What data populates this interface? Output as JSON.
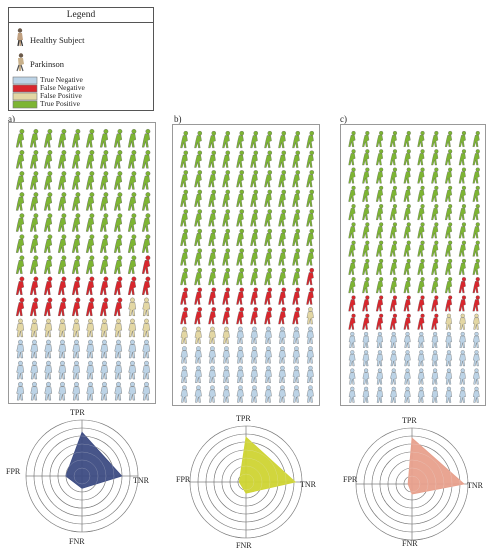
{
  "legend": {
    "title": "Legend",
    "figures": [
      {
        "label": "Healthy Subject",
        "icon": "healthy-subject-icon"
      },
      {
        "label": "Parkinson",
        "icon": "parkinson-subject-icon"
      }
    ],
    "classes": [
      {
        "label": "True Negative",
        "color": "#bcd3e6"
      },
      {
        "label": "False Negative",
        "color": "#d9262d"
      },
      {
        "label": "False Positive",
        "color": "#e3d7a4"
      },
      {
        "label": "True Positive",
        "color": "#7db533"
      }
    ]
  },
  "panels": [
    {
      "label": "a)",
      "counts": {
        "tp": 69,
        "fn": 19,
        "fp": 12,
        "tn": 30
      },
      "radar": {
        "color": "#3d4c83",
        "axes": [
          "TPR",
          "TNR",
          "FNR",
          "FPR"
        ],
        "values": {
          "TPR": 0.78,
          "TNR": 0.71,
          "FNR": 0.22,
          "FPR": 0.29
        }
      }
    },
    {
      "label": "b)",
      "counts": {
        "tp": 79,
        "fn": 20,
        "fp": 5,
        "tn": 36
      },
      "radar": {
        "color": "#cfd433",
        "axes": [
          "TPR",
          "TNR",
          "FNR",
          "FPR"
        ],
        "values": {
          "TPR": 0.8,
          "TNR": 0.88,
          "FNR": 0.2,
          "FPR": 0.12
        }
      }
    },
    {
      "label": "c)",
      "counts": {
        "tp": 88,
        "fn": 19,
        "fp": 3,
        "tn": 40
      },
      "radar": {
        "color": "#e8a08c",
        "axes": [
          "TPR",
          "TNR",
          "FNR",
          "FPR"
        ],
        "values": {
          "TPR": 0.82,
          "TNR": 0.93,
          "FNR": 0.18,
          "FPR": 0.07
        }
      }
    }
  ]
}
